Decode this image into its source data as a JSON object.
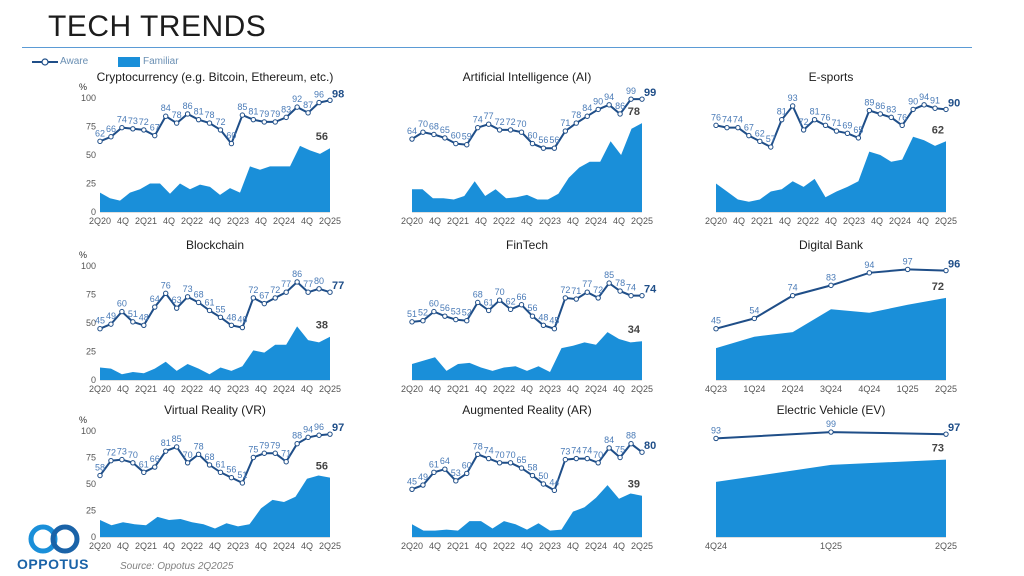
{
  "page": {
    "title": "TECH TRENDS",
    "source": "Source: Oppotus 2Q2025",
    "logo_text": "OPPOTUS",
    "y_unit": "%",
    "legend": {
      "aware": "Aware",
      "familiar": "Familiar"
    },
    "colors": {
      "aware_line": "#1f4e88",
      "familiar_area": "#1a8fd9",
      "aware_label": "#4a7bb7",
      "end_label_aware": "#1f4e88",
      "end_label_familiar": "#444444"
    }
  },
  "chart_data": [
    {
      "type": "area",
      "title": "Cryptocurrency (e.g. Bitcoin, Ethereum, etc.)",
      "ylim": [
        0,
        100
      ],
      "yticks": [
        0,
        25,
        50,
        75,
        100
      ],
      "x_tick_labels": [
        "2Q20",
        "4Q",
        "2Q21",
        "4Q",
        "2Q22",
        "4Q",
        "2Q23",
        "4Q",
        "2Q24",
        "4Q",
        "2Q25"
      ],
      "series": [
        {
          "name": "Aware",
          "values": [
            62,
            66,
            74,
            73,
            72,
            67,
            84,
            78,
            86,
            81,
            78,
            72,
            60,
            85,
            81,
            79,
            79,
            83,
            92,
            87,
            96,
            98
          ]
        },
        {
          "name": "Familiar",
          "values": [
            17,
            12,
            10,
            17,
            20,
            25,
            25,
            16,
            25,
            20,
            24,
            22,
            15,
            21,
            17,
            40,
            37,
            40,
            40,
            40,
            58,
            54,
            51,
            56
          ]
        }
      ],
      "end_labels": {
        "aware": "98",
        "familiar": "56"
      }
    },
    {
      "type": "area",
      "title": "Artificial Intelligence (AI)",
      "ylim": [
        0,
        100
      ],
      "yticks": [],
      "x_tick_labels": [
        "2Q20",
        "4Q",
        "2Q21",
        "4Q",
        "2Q22",
        "4Q",
        "2Q23",
        "4Q",
        "2Q24",
        "4Q",
        "2Q25"
      ],
      "series": [
        {
          "name": "Aware",
          "values": [
            64,
            70,
            68,
            65,
            60,
            59,
            74,
            77,
            72,
            72,
            70,
            60,
            56,
            56,
            71,
            78,
            84,
            90,
            94,
            86,
            99,
            99
          ]
        },
        {
          "name": "Familiar",
          "values": [
            20,
            20,
            12,
            12,
            11,
            14,
            27,
            14,
            20,
            12,
            13,
            15,
            11,
            11,
            16,
            30,
            39,
            44,
            44,
            62,
            50,
            73,
            78
          ]
        }
      ],
      "end_labels": {
        "aware": "99",
        "familiar": "78"
      }
    },
    {
      "type": "area",
      "title": "E-sports",
      "ylim": [
        0,
        100
      ],
      "yticks": [],
      "x_tick_labels": [
        "2Q20",
        "4Q",
        "2Q21",
        "4Q",
        "2Q22",
        "4Q",
        "2Q23",
        "4Q",
        "2Q24",
        "4Q",
        "2Q25"
      ],
      "series": [
        {
          "name": "Aware",
          "values": [
            76,
            74,
            74,
            67,
            62,
            57,
            81,
            93,
            72,
            81,
            76,
            71,
            69,
            65,
            89,
            86,
            83,
            76,
            90,
            94,
            91,
            90
          ]
        },
        {
          "name": "Familiar",
          "values": [
            25,
            18,
            11,
            9,
            11,
            18,
            20,
            27,
            22,
            29,
            13,
            18,
            22,
            27,
            53,
            50,
            44,
            46,
            66,
            63,
            58,
            62
          ]
        }
      ],
      "end_labels": {
        "aware": "90",
        "familiar": "62"
      }
    },
    {
      "type": "area",
      "title": "Blockchain",
      "ylim": [
        0,
        100
      ],
      "yticks": [
        0,
        25,
        50,
        75,
        100
      ],
      "x_tick_labels": [
        "2Q20",
        "4Q",
        "2Q21",
        "4Q",
        "2Q22",
        "4Q",
        "2Q23",
        "4Q",
        "2Q24",
        "4Q",
        "2Q25"
      ],
      "series": [
        {
          "name": "Aware",
          "values": [
            45,
            49,
            60,
            51,
            48,
            64,
            76,
            63,
            73,
            68,
            61,
            55,
            48,
            46,
            72,
            67,
            72,
            77,
            86,
            77,
            80,
            77
          ]
        },
        {
          "name": "Familiar",
          "values": [
            11,
            10,
            5,
            7,
            6,
            10,
            16,
            8,
            14,
            10,
            5,
            11,
            8,
            12,
            26,
            24,
            31,
            31,
            47,
            35,
            33,
            38
          ]
        }
      ],
      "end_labels": {
        "aware": "77",
        "familiar": "38"
      }
    },
    {
      "type": "area",
      "title": "FinTech",
      "ylim": [
        0,
        100
      ],
      "yticks": [],
      "x_tick_labels": [
        "2Q20",
        "4Q",
        "2Q21",
        "4Q",
        "2Q22",
        "4Q",
        "2Q23",
        "4Q",
        "2Q24",
        "4Q",
        "2Q25"
      ],
      "series": [
        {
          "name": "Aware",
          "values": [
            51,
            52,
            60,
            56,
            53,
            52,
            68,
            61,
            70,
            62,
            66,
            56,
            48,
            45,
            72,
            71,
            77,
            72,
            85,
            78,
            74,
            74
          ]
        },
        {
          "name": "Familiar",
          "values": [
            14,
            17,
            20,
            8,
            14,
            15,
            11,
            8,
            11,
            12,
            8,
            12,
            7,
            28,
            30,
            33,
            31,
            42,
            36,
            33,
            34
          ]
        }
      ],
      "end_labels": {
        "aware": "74",
        "familiar": "34"
      }
    },
    {
      "type": "area",
      "title": "Digital Bank",
      "ylim": [
        0,
        100
      ],
      "yticks": [],
      "x_tick_labels": [
        "4Q23",
        "1Q24",
        "2Q24",
        "3Q24",
        "4Q24",
        "1Q25",
        "2Q25"
      ],
      "series": [
        {
          "name": "Aware",
          "values": [
            45,
            54,
            74,
            83,
            94,
            97,
            96
          ]
        },
        {
          "name": "Familiar",
          "values": [
            28,
            38,
            42,
            62,
            59,
            66,
            72
          ]
        }
      ],
      "end_labels": {
        "aware": "96",
        "familiar": "72"
      }
    },
    {
      "type": "area",
      "title": "Virtual Reality (VR)",
      "ylim": [
        0,
        100
      ],
      "yticks": [
        0,
        25,
        50,
        75,
        100
      ],
      "x_tick_labels": [
        "2Q20",
        "4Q",
        "2Q21",
        "4Q",
        "2Q22",
        "4Q",
        "2Q23",
        "4Q",
        "2Q24",
        "4Q",
        "2Q25"
      ],
      "series": [
        {
          "name": "Aware",
          "values": [
            58,
            72,
            73,
            70,
            61,
            66,
            81,
            85,
            70,
            78,
            68,
            61,
            56,
            51,
            75,
            79,
            79,
            71,
            88,
            94,
            96,
            97
          ]
        },
        {
          "name": "Familiar",
          "values": [
            16,
            11,
            14,
            12,
            11,
            19,
            16,
            17,
            14,
            12,
            8,
            13,
            10,
            12,
            27,
            35,
            33,
            38,
            55,
            58,
            56
          ]
        }
      ],
      "end_labels": {
        "aware": "97",
        "familiar": "56"
      }
    },
    {
      "type": "area",
      "title": "Augmented Reality (AR)",
      "ylim": [
        0,
        100
      ],
      "yticks": [],
      "x_tick_labels": [
        "2Q20",
        "4Q",
        "2Q21",
        "4Q",
        "2Q22",
        "4Q",
        "2Q23",
        "4Q",
        "2Q24",
        "4Q",
        "2Q25"
      ],
      "series": [
        {
          "name": "Aware",
          "values": [
            45,
            49,
            61,
            64,
            53,
            60,
            78,
            74,
            70,
            70,
            65,
            58,
            50,
            44,
            73,
            74,
            74,
            70,
            84,
            75,
            88,
            80
          ]
        },
        {
          "name": "Familiar",
          "values": [
            12,
            6,
            6,
            7,
            6,
            15,
            15,
            8,
            15,
            12,
            7,
            13,
            6,
            7,
            24,
            28,
            37,
            49,
            36,
            41,
            39
          ]
        }
      ],
      "end_labels": {
        "aware": "80",
        "familiar": "39"
      }
    },
    {
      "type": "area",
      "title": "Electric Vehicle (EV)",
      "ylim": [
        0,
        100
      ],
      "yticks": [],
      "x_tick_labels": [
        "4Q24",
        "1Q25",
        "2Q25"
      ],
      "series": [
        {
          "name": "Aware",
          "values": [
            93,
            99,
            97
          ]
        },
        {
          "name": "Familiar",
          "values": [
            52,
            68,
            73
          ]
        }
      ],
      "end_labels": {
        "aware": "97",
        "familiar": "73"
      }
    }
  ]
}
